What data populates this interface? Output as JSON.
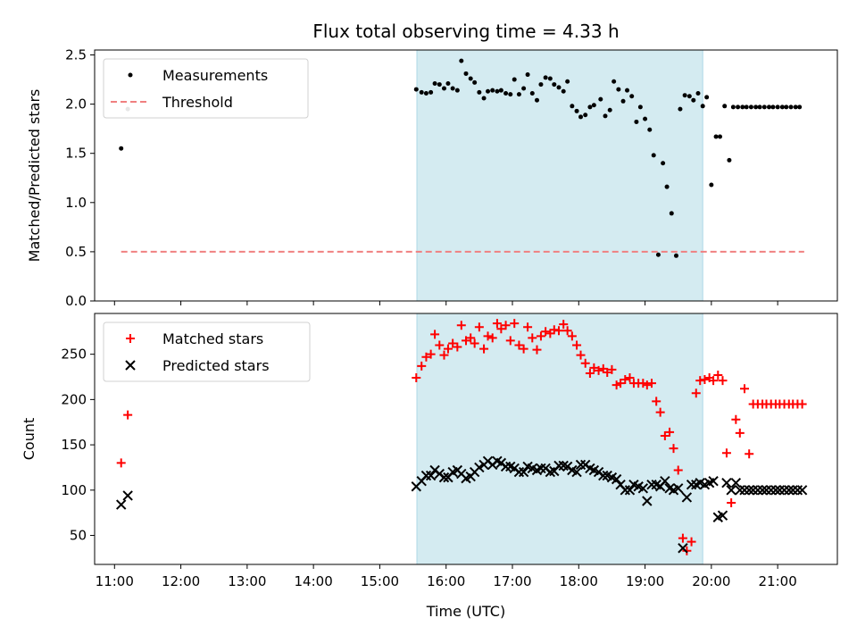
{
  "title": "Flux total observing time = 4.33 h",
  "xlabel": "Time (UTC)",
  "chart_data": [
    {
      "type": "scatter",
      "ylabel": "Matched/Predicted stars",
      "ylim": [
        0,
        2.55
      ],
      "yticks": [
        "0.0",
        "0.5",
        "1.0",
        "1.5",
        "2.0",
        "2.5"
      ],
      "ytick_values": [
        0,
        0.5,
        1.0,
        1.5,
        2.0,
        2.5
      ],
      "legend_position": "top-left",
      "shaded_region": {
        "x_start": 15.56,
        "x_end": 19.87,
        "color": "#d4ebf1"
      },
      "threshold": {
        "name": "Threshold",
        "value": 0.5,
        "x_start": 11.1,
        "x_end": 21.4,
        "color": "#f08080"
      },
      "series": [
        {
          "name": "Measurements",
          "color": "#000000",
          "x": [
            11.1,
            11.2,
            15.55,
            15.63,
            15.7,
            15.77,
            15.83,
            15.9,
            15.97,
            16.03,
            16.1,
            16.17,
            16.23,
            16.3,
            16.37,
            16.43,
            16.5,
            16.57,
            16.63,
            16.7,
            16.77,
            16.83,
            16.9,
            16.97,
            17.03,
            17.1,
            17.17,
            17.23,
            17.3,
            17.37,
            17.43,
            17.5,
            17.57,
            17.63,
            17.7,
            17.77,
            17.83,
            17.9,
            17.97,
            18.03,
            18.1,
            18.17,
            18.23,
            18.33,
            18.4,
            18.47,
            18.53,
            18.6,
            18.67,
            18.73,
            18.8,
            18.87,
            18.93,
            19.0,
            19.07,
            19.13,
            19.2,
            19.27,
            19.33,
            19.4,
            19.47,
            19.53,
            19.6,
            19.67,
            19.73,
            19.8,
            19.87,
            19.93,
            20.0,
            20.07,
            20.13,
            20.2,
            20.27,
            20.33,
            20.4,
            20.47,
            20.53,
            20.6,
            20.67,
            20.73,
            20.8,
            20.87,
            20.93,
            21.0,
            21.07,
            21.13,
            21.2,
            21.27,
            21.33
          ],
          "y": [
            1.55,
            1.95,
            2.15,
            2.12,
            2.11,
            2.12,
            2.21,
            2.2,
            2.16,
            2.21,
            2.16,
            2.14,
            2.44,
            2.31,
            2.26,
            2.22,
            2.12,
            2.06,
            2.13,
            2.14,
            2.13,
            2.14,
            2.11,
            2.1,
            2.25,
            2.1,
            2.16,
            2.3,
            2.11,
            2.04,
            2.2,
            2.27,
            2.26,
            2.2,
            2.17,
            2.13,
            2.23,
            1.98,
            1.93,
            1.87,
            1.89,
            1.97,
            1.99,
            2.05,
            1.88,
            1.94,
            2.23,
            2.15,
            2.03,
            2.14,
            2.08,
            1.82,
            1.97,
            1.85,
            1.74,
            1.48,
            0.47,
            1.4,
            1.16,
            0.89,
            0.46,
            1.95,
            2.09,
            2.08,
            2.04,
            2.11,
            1.98,
            2.07,
            1.18,
            1.67,
            1.67,
            1.98,
            1.43,
            1.97,
            1.97,
            1.97,
            1.97,
            1.97,
            1.97,
            1.97,
            1.97,
            1.97,
            1.97,
            1.97,
            1.97,
            1.97,
            1.97,
            1.97,
            1.97
          ]
        }
      ]
    },
    {
      "type": "scatter",
      "ylabel": "Count",
      "ylim": [
        18,
        295
      ],
      "yticks": [
        "50",
        "100",
        "150",
        "200",
        "250"
      ],
      "ytick_values": [
        50,
        100,
        150,
        200,
        250
      ],
      "legend_position": "top-left",
      "shaded_region": {
        "x_start": 15.56,
        "x_end": 19.87,
        "color": "#d4ebf1"
      },
      "series": [
        {
          "name": "Matched stars",
          "color": "#ff0000",
          "marker": "plus",
          "x": [
            11.1,
            11.2,
            15.55,
            15.63,
            15.7,
            15.77,
            15.83,
            15.9,
            15.97,
            16.03,
            16.1,
            16.17,
            16.23,
            16.3,
            16.37,
            16.43,
            16.5,
            16.57,
            16.63,
            16.7,
            16.77,
            16.83,
            16.9,
            16.97,
            17.03,
            17.1,
            17.17,
            17.23,
            17.3,
            17.37,
            17.43,
            17.5,
            17.57,
            17.63,
            17.7,
            17.77,
            17.83,
            17.9,
            17.97,
            18.03,
            18.1,
            18.17,
            18.23,
            18.3,
            18.37,
            18.43,
            18.5,
            18.57,
            18.63,
            18.7,
            18.77,
            18.83,
            18.9,
            18.97,
            19.03,
            19.1,
            19.17,
            19.23,
            19.3,
            19.37,
            19.43,
            19.5,
            19.57,
            19.63,
            19.7,
            19.77,
            19.83,
            19.9,
            19.97,
            20.03,
            20.1,
            20.17,
            20.23,
            20.3,
            20.37,
            20.43,
            20.5,
            20.57,
            20.63,
            20.7,
            20.77,
            20.83,
            20.9,
            20.97,
            21.03,
            21.1,
            21.17,
            21.23,
            21.3,
            21.37
          ],
          "y": [
            130,
            183,
            224,
            237,
            247,
            250,
            272,
            260,
            249,
            256,
            262,
            258,
            282,
            265,
            268,
            262,
            280,
            256,
            270,
            268,
            284,
            278,
            282,
            265,
            284,
            260,
            256,
            280,
            268,
            255,
            270,
            275,
            273,
            277,
            276,
            283,
            276,
            270,
            260,
            249,
            240,
            229,
            235,
            232,
            234,
            230,
            233,
            216,
            218,
            222,
            224,
            218,
            218,
            218,
            216,
            218,
            198,
            186,
            160,
            164,
            146,
            122,
            47,
            33,
            43,
            207,
            221,
            222,
            224,
            221,
            227,
            221,
            141,
            86,
            178,
            163,
            212,
            140,
            195,
            195,
            195,
            195,
            195,
            195,
            195,
            195,
            195,
            195,
            195,
            195
          ]
        },
        {
          "name": "Predicted stars",
          "color": "#000000",
          "marker": "x",
          "x": [
            11.1,
            11.2,
            15.55,
            15.63,
            15.7,
            15.77,
            15.83,
            15.9,
            15.97,
            16.03,
            16.1,
            16.17,
            16.23,
            16.3,
            16.37,
            16.43,
            16.5,
            16.57,
            16.63,
            16.7,
            16.77,
            16.83,
            16.9,
            16.97,
            17.03,
            17.1,
            17.17,
            17.23,
            17.3,
            17.37,
            17.43,
            17.5,
            17.57,
            17.63,
            17.7,
            17.77,
            17.83,
            17.9,
            17.97,
            18.03,
            18.1,
            18.17,
            18.23,
            18.3,
            18.37,
            18.43,
            18.5,
            18.57,
            18.63,
            18.7,
            18.77,
            18.83,
            18.9,
            18.97,
            19.03,
            19.1,
            19.17,
            19.23,
            19.3,
            19.37,
            19.43,
            19.5,
            19.57,
            19.63,
            19.7,
            19.77,
            19.83,
            19.9,
            19.97,
            20.03,
            20.1,
            20.17,
            20.23,
            20.3,
            20.37,
            20.43,
            20.5,
            20.57,
            20.63,
            20.7,
            20.77,
            20.83,
            20.9,
            20.97,
            21.03,
            21.1,
            21.17,
            21.23,
            21.3,
            21.37
          ],
          "y": [
            84,
            94,
            104,
            110,
            116,
            116,
            122,
            118,
            114,
            114,
            120,
            122,
            118,
            113,
            115,
            120,
            125,
            128,
            132,
            128,
            132,
            130,
            126,
            126,
            124,
            120,
            120,
            126,
            124,
            122,
            124,
            124,
            120,
            121,
            127,
            127,
            126,
            122,
            120,
            128,
            128,
            124,
            122,
            120,
            116,
            116,
            114,
            112,
            106,
            100,
            100,
            106,
            104,
            102,
            88,
            106,
            106,
            104,
            110,
            102,
            100,
            102,
            36,
            92,
            106,
            106,
            108,
            106,
            108,
            110,
            70,
            72,
            108,
            100,
            108,
            100,
            100,
            100,
            100,
            100,
            100,
            100,
            100,
            100,
            100,
            100,
            100,
            100,
            100,
            100
          ]
        }
      ]
    }
  ],
  "xticks": [
    "11:00",
    "12:00",
    "13:00",
    "14:00",
    "15:00",
    "16:00",
    "17:00",
    "18:00",
    "19:00",
    "20:00",
    "21:00"
  ],
  "xtick_values": [
    11,
    12,
    13,
    14,
    15,
    16,
    17,
    18,
    19,
    20,
    21
  ],
  "xlim": [
    10.7,
    21.9
  ]
}
